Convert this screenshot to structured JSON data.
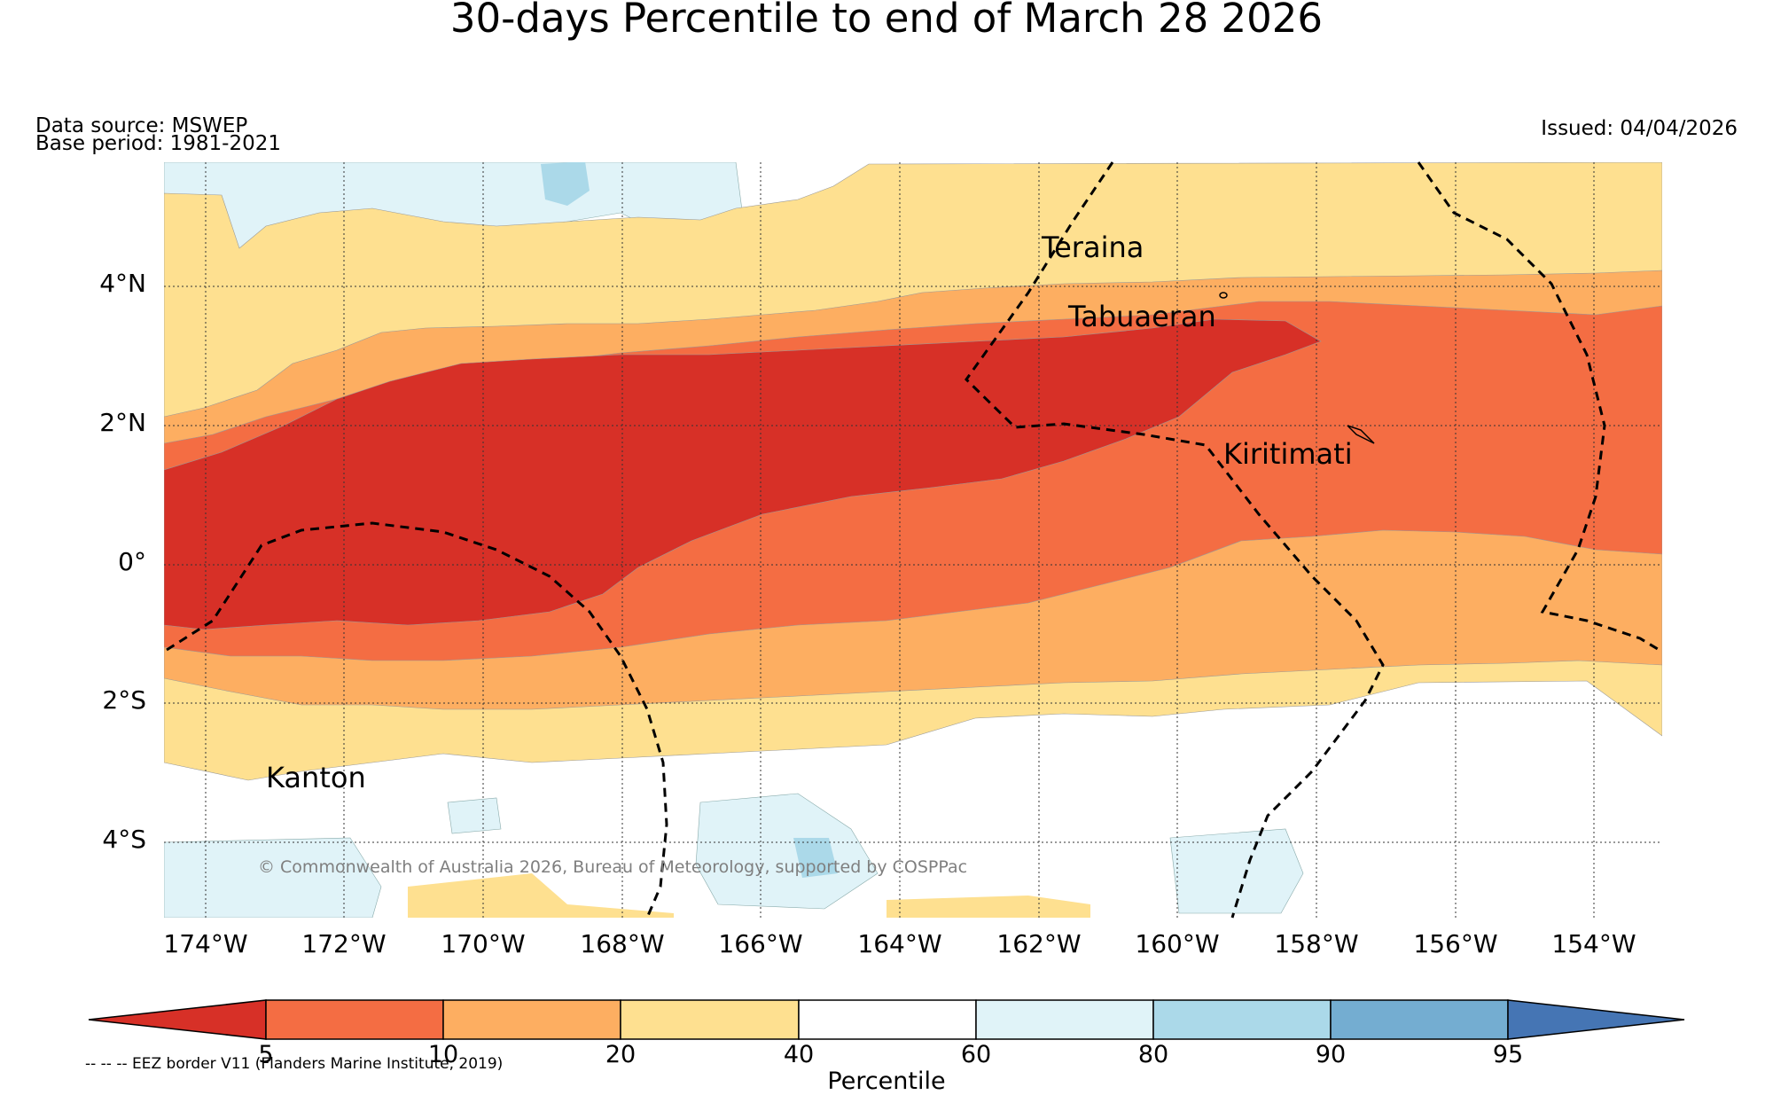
{
  "title": "30-days Percentile to end of March 28 2026",
  "data_source": "Data source: MSWEP",
  "base_period": "Base period: 1981-2021",
  "issued": "Issued: 04/04/2026",
  "credit": "© Commonwealth of Australia 2026, Bureau of Meteorology, supported by COSPPac",
  "eez_note": "-- -- -- EEZ border V11 (Flanders Marine Institute, 2019)",
  "lat_labels": [
    "4°N",
    "2°N",
    "0°",
    "2°S",
    "4°S"
  ],
  "lon_labels": [
    "174°W",
    "172°W",
    "170°W",
    "168°W",
    "166°W",
    "164°W",
    "162°W",
    "160°W",
    "158°W",
    "156°W",
    "154°W"
  ],
  "places": [
    {
      "name": "Teraina"
    },
    {
      "name": "Tabuaeran"
    },
    {
      "name": "Kiritimati"
    },
    {
      "name": "Kanton"
    }
  ],
  "colorbar": {
    "label": "Percentile",
    "ticks": [
      "5",
      "10",
      "20",
      "40",
      "60",
      "80",
      "90",
      "95"
    ],
    "colors": {
      "below_5": "#d73027",
      "5_10": "#f46d43",
      "10_20": "#fdae61",
      "20_40": "#fee090",
      "40_60": "#ffffff",
      "60_80": "#e0f3f8",
      "80_90": "#abd9e9",
      "90_95": "#74add1",
      "above_95": "#4575b4"
    }
  }
}
